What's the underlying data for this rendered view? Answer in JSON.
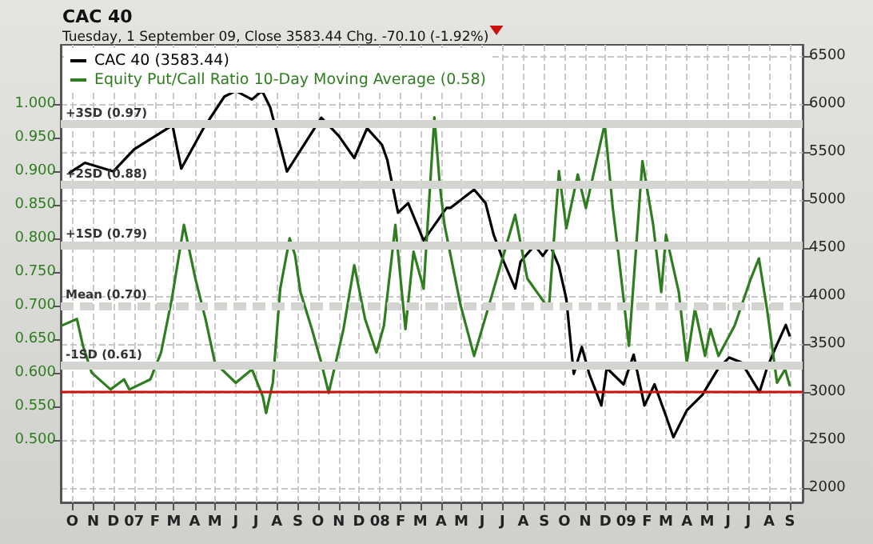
{
  "chart_data": {
    "type": "line",
    "title": "CAC 40",
    "subtitle": "Tuesday, 1 September 09, Close 3583.44 Chg. -70.10 (-1.92%)",
    "legend": "top left",
    "grid": true,
    "xlim": [
      "2006-09-14",
      "2009-09-20"
    ],
    "xticks": [
      {
        "value": "2006-10-01",
        "label": "O"
      },
      {
        "value": "2006-11-01",
        "label": "N"
      },
      {
        "value": "2006-12-01",
        "label": "D"
      },
      {
        "value": "2007-01-01",
        "label": "07"
      },
      {
        "value": "2007-02-01",
        "label": "F"
      },
      {
        "value": "2007-03-01",
        "label": "M"
      },
      {
        "value": "2007-04-01",
        "label": "A"
      },
      {
        "value": "2007-05-01",
        "label": "M"
      },
      {
        "value": "2007-06-01",
        "label": "J"
      },
      {
        "value": "2007-07-01",
        "label": "J"
      },
      {
        "value": "2007-08-01",
        "label": "A"
      },
      {
        "value": "2007-09-01",
        "label": "S"
      },
      {
        "value": "2007-10-01",
        "label": "O"
      },
      {
        "value": "2007-11-01",
        "label": "N"
      },
      {
        "value": "2007-12-01",
        "label": "D"
      },
      {
        "value": "2008-01-01",
        "label": "08"
      },
      {
        "value": "2008-02-01",
        "label": "F"
      },
      {
        "value": "2008-03-01",
        "label": "M"
      },
      {
        "value": "2008-04-01",
        "label": "A"
      },
      {
        "value": "2008-05-01",
        "label": "M"
      },
      {
        "value": "2008-06-01",
        "label": "J"
      },
      {
        "value": "2008-07-01",
        "label": "J"
      },
      {
        "value": "2008-08-01",
        "label": "A"
      },
      {
        "value": "2008-09-01",
        "label": "S"
      },
      {
        "value": "2008-10-01",
        "label": "O"
      },
      {
        "value": "2008-11-01",
        "label": "N"
      },
      {
        "value": "2008-12-01",
        "label": "D"
      },
      {
        "value": "2009-01-01",
        "label": "09"
      },
      {
        "value": "2009-02-01",
        "label": "F"
      },
      {
        "value": "2009-03-01",
        "label": "M"
      },
      {
        "value": "2009-04-01",
        "label": "A"
      },
      {
        "value": "2009-05-01",
        "label": "M"
      },
      {
        "value": "2009-06-01",
        "label": "J"
      },
      {
        "value": "2009-07-01",
        "label": "J"
      },
      {
        "value": "2009-08-01",
        "label": "A"
      },
      {
        "value": "2009-09-01",
        "label": "S"
      }
    ],
    "ylim": [
      0.407,
      1.088
    ],
    "yticks": [
      {
        "value": 0.5,
        "label": "0.500"
      },
      {
        "value": 0.55,
        "label": "0.550"
      },
      {
        "value": 0.6,
        "label": "0.600"
      },
      {
        "value": 0.65,
        "label": "0.650"
      },
      {
        "value": 0.7,
        "label": "0.700"
      },
      {
        "value": 0.75,
        "label": "0.750"
      },
      {
        "value": 0.8,
        "label": "0.800"
      },
      {
        "value": 0.85,
        "label": "0.850"
      },
      {
        "value": 0.9,
        "label": "0.900"
      },
      {
        "value": 0.95,
        "label": "0.950"
      },
      {
        "value": 1,
        "label": "1.000"
      }
    ],
    "y2lim": [
      1850,
      6620
    ],
    "y2ticks": [
      2000,
      2500,
      3000,
      3500,
      4000,
      4500,
      5000,
      5500,
      6000,
      6500
    ],
    "ref_lines": [
      {
        "axis": "y",
        "value": 0.97,
        "label": "+3SD (0.97)",
        "color": "#d4d4d0"
      },
      {
        "axis": "y",
        "value": 0.88,
        "label": "+2SD (0.88)",
        "color": "#d4d4d0"
      },
      {
        "axis": "y",
        "value": 0.79,
        "label": "+1SD (0.79)",
        "color": "#d4d4d0"
      },
      {
        "axis": "y",
        "value": 0.7,
        "label": "Mean (0.70)",
        "color": "#d4d4d0",
        "line_style": "dashed"
      },
      {
        "axis": "y",
        "value": 0.61,
        "label": "-1SD (0.61)",
        "color": "#d4d4d0"
      },
      {
        "axis": "y2",
        "value": 3000,
        "color": "#cc1111"
      }
    ],
    "series": [
      {
        "name": "CAC 40 (3583.44)",
        "color": "#000000",
        "axis": "y2",
        "x": [
          "2006-09-26",
          "2006-10-20",
          "2006-12-01",
          "2007-01-01",
          "2007-02-27",
          "2007-03-12",
          "2007-04-14",
          "2007-05-15",
          "2007-06-01",
          "2007-06-25",
          "2007-07-10",
          "2007-07-22",
          "2007-08-16",
          "2007-09-06",
          "2007-10-06",
          "2007-11-01",
          "2007-11-24",
          "2007-12-13",
          "2008-01-04",
          "2008-01-12",
          "2008-01-28",
          "2008-02-12",
          "2008-03-06",
          "2008-04-09",
          "2008-04-15",
          "2008-05-20",
          "2008-06-06",
          "2008-06-18",
          "2008-07-03",
          "2008-07-20",
          "2008-07-28",
          "2008-08-18",
          "2008-08-30",
          "2008-09-10",
          "2008-09-23",
          "2008-10-04",
          "2008-10-15",
          "2008-10-27",
          "2008-11-07",
          "2008-11-25",
          "2008-12-03",
          "2008-12-28",
          "2009-01-12",
          "2009-01-28",
          "2009-02-12",
          "2009-03-01",
          "2009-03-12",
          "2009-04-01",
          "2009-04-24",
          "2009-05-18",
          "2009-06-03",
          "2009-06-21",
          "2009-07-18",
          "2009-07-29",
          "2009-08-10",
          "2009-08-26",
          "2009-09-01"
        ],
        "values": [
          5280,
          5390,
          5300,
          5530,
          5780,
          5330,
          5750,
          6080,
          6140,
          6050,
          6140,
          5970,
          5300,
          5530,
          5860,
          5670,
          5440,
          5750,
          5580,
          5420,
          4870,
          4970,
          4580,
          4920,
          4920,
          5110,
          4970,
          4640,
          4360,
          4080,
          4360,
          4530,
          4420,
          4530,
          4310,
          3970,
          3190,
          3470,
          3190,
          2860,
          3250,
          3080,
          3390,
          2860,
          3080,
          2750,
          2530,
          2810,
          2970,
          3250,
          3360,
          3310,
          3000,
          3250,
          3450,
          3700,
          3580
        ]
      },
      {
        "name": "Equity Put/Call Ratio 10-Day Moving Average (0.58)",
        "color": "#2e7d1e",
        "axis": "y",
        "x": [
          "2006-09-15",
          "2006-10-08",
          "2006-10-17",
          "2006-10-30",
          "2006-11-27",
          "2006-12-17",
          "2006-12-25",
          "2007-01-25",
          "2007-02-10",
          "2007-02-26",
          "2007-03-16",
          "2007-04-02",
          "2007-04-17",
          "2007-05-01",
          "2007-06-01",
          "2007-06-25",
          "2007-07-11",
          "2007-07-16",
          "2007-07-26",
          "2007-08-06",
          "2007-08-20",
          "2007-08-28",
          "2007-09-05",
          "2007-09-22",
          "2007-10-06",
          "2007-10-17",
          "2007-11-08",
          "2007-11-24",
          "2007-12-10",
          "2007-12-27",
          "2008-01-07",
          "2008-01-19",
          "2008-01-24",
          "2008-02-08",
          "2008-02-20",
          "2008-03-06",
          "2008-03-22",
          "2008-03-30",
          "2008-04-06",
          "2008-04-30",
          "2008-05-20",
          "2008-06-11",
          "2008-07-20",
          "2008-08-07",
          "2008-09-08",
          "2008-09-23",
          "2008-10-04",
          "2008-10-21",
          "2008-11-02",
          "2008-11-30",
          "2008-12-12",
          "2008-12-20",
          "2009-01-05",
          "2009-01-25",
          "2009-02-10",
          "2009-02-22",
          "2009-03-01",
          "2009-03-20",
          "2009-04-01",
          "2009-04-13",
          "2009-04-28",
          "2009-05-06",
          "2009-05-18",
          "2009-06-11",
          "2009-07-05",
          "2009-07-17",
          "2009-07-29",
          "2009-08-13",
          "2009-08-25",
          "2009-09-01"
        ],
        "values": [
          0.67,
          0.68,
          0.64,
          0.6,
          0.575,
          0.59,
          0.575,
          0.59,
          0.63,
          0.71,
          0.82,
          0.74,
          0.68,
          0.615,
          0.585,
          0.605,
          0.565,
          0.54,
          0.585,
          0.725,
          0.8,
          0.775,
          0.72,
          0.665,
          0.615,
          0.57,
          0.665,
          0.76,
          0.68,
          0.63,
          0.67,
          0.775,
          0.82,
          0.665,
          0.78,
          0.725,
          0.98,
          0.88,
          0.82,
          0.7,
          0.625,
          0.7,
          0.835,
          0.74,
          0.695,
          0.9,
          0.815,
          0.895,
          0.845,
          0.97,
          0.845,
          0.78,
          0.64,
          0.915,
          0.82,
          0.72,
          0.805,
          0.72,
          0.615,
          0.695,
          0.625,
          0.665,
          0.625,
          0.67,
          0.74,
          0.77,
          0.695,
          0.585,
          0.605,
          0.58
        ]
      }
    ]
  }
}
